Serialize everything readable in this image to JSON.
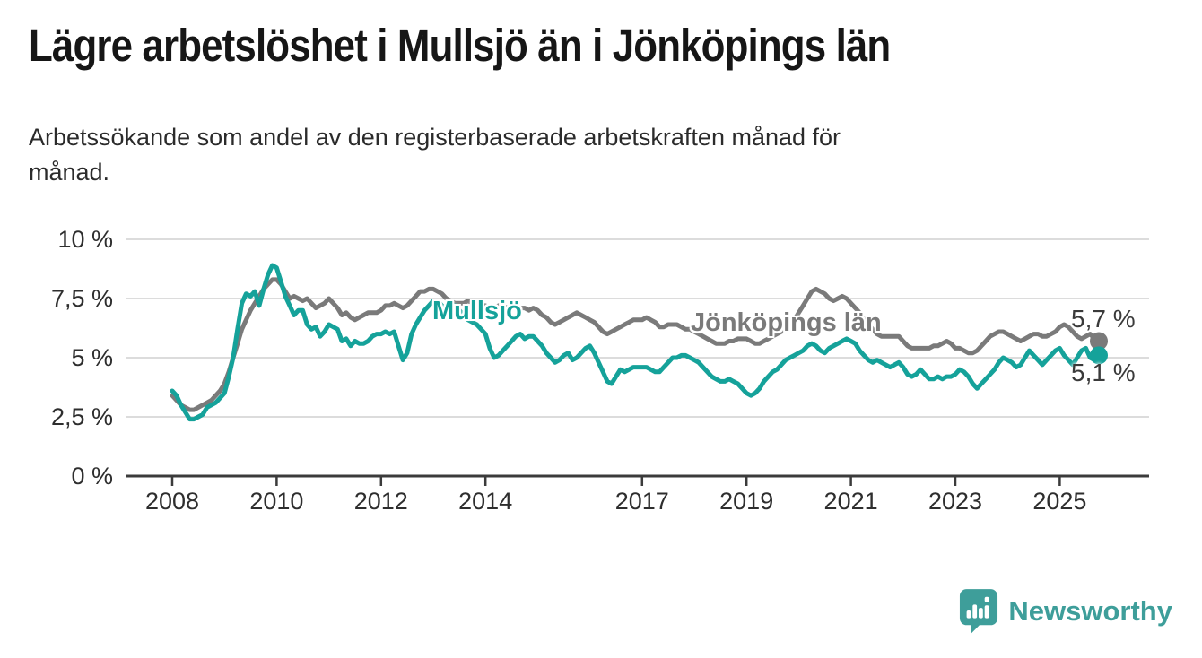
{
  "header": {
    "title": "Lägre arbetslöshet i Mullsjö än i Jönköpings län",
    "subtitle": "Arbetssökande som andel av den registerbaserade arbetskraften månad för\nmånad."
  },
  "chart_data": {
    "type": "line",
    "unit": "%",
    "frequency": "monthly",
    "x_start_year": 2008,
    "ylim": [
      0,
      10
    ],
    "grid": "horizontal",
    "y_ticks": [
      {
        "label": "0 %",
        "value": 0
      },
      {
        "label": "2,5 %",
        "value": 2.5
      },
      {
        "label": "5 %",
        "value": 5
      },
      {
        "label": "7,5 %",
        "value": 7.5
      },
      {
        "label": "10 %",
        "value": 10
      }
    ],
    "x_ticks": [
      {
        "label": "2008",
        "year": 2008
      },
      {
        "label": "2010",
        "year": 2010
      },
      {
        "label": "2012",
        "year": 2012
      },
      {
        "label": "2014",
        "year": 2014
      },
      {
        "label": "2017",
        "year": 2017
      },
      {
        "label": "2019",
        "year": 2019
      },
      {
        "label": "2021",
        "year": 2021
      },
      {
        "label": "2023",
        "year": 2023
      },
      {
        "label": "2025",
        "year": 2025
      }
    ],
    "series": [
      {
        "name": "Mullsjö",
        "color": "#15A29A",
        "end_label": "5,1 %",
        "end_value": 5.1,
        "values": [
          3.6,
          3.4,
          3.0,
          2.7,
          2.4,
          2.4,
          2.5,
          2.6,
          2.9,
          3.0,
          3.1,
          3.3,
          3.5,
          4.2,
          5.0,
          6.2,
          7.3,
          7.7,
          7.6,
          7.8,
          7.2,
          7.9,
          8.5,
          8.9,
          8.8,
          8.2,
          7.6,
          7.2,
          6.8,
          7.0,
          7.0,
          6.4,
          6.2,
          6.3,
          5.9,
          6.1,
          6.4,
          6.3,
          6.2,
          5.7,
          5.8,
          5.5,
          5.7,
          5.6,
          5.6,
          5.7,
          5.9,
          6.0,
          6.0,
          6.1,
          6.0,
          6.1,
          5.5,
          4.9,
          5.2,
          6.0,
          6.4,
          6.7,
          7.0,
          7.2,
          7.4,
          7.4,
          7.2,
          7.1,
          7.0,
          7.2,
          7.0,
          6.8,
          6.6,
          6.5,
          6.4,
          6.2,
          6.0,
          5.4,
          5.0,
          5.1,
          5.3,
          5.5,
          5.7,
          5.9,
          6.0,
          5.8,
          5.9,
          5.9,
          5.7,
          5.5,
          5.2,
          5.0,
          4.8,
          4.9,
          5.1,
          5.2,
          4.9,
          5.0,
          5.2,
          5.4,
          5.5,
          5.2,
          4.8,
          4.4,
          4.0,
          3.9,
          4.2,
          4.5,
          4.4,
          4.5,
          4.6,
          4.6,
          4.6,
          4.6,
          4.5,
          4.4,
          4.4,
          4.6,
          4.8,
          5.0,
          5.0,
          5.1,
          5.1,
          5.0,
          4.9,
          4.8,
          4.6,
          4.4,
          4.2,
          4.1,
          4.0,
          4.0,
          4.1,
          4.0,
          3.9,
          3.7,
          3.5,
          3.4,
          3.5,
          3.7,
          4.0,
          4.2,
          4.4,
          4.5,
          4.7,
          4.9,
          5.0,
          5.1,
          5.2,
          5.3,
          5.5,
          5.6,
          5.5,
          5.3,
          5.2,
          5.4,
          5.5,
          5.6,
          5.7,
          5.8,
          5.7,
          5.6,
          5.3,
          5.1,
          4.9,
          4.8,
          4.9,
          4.8,
          4.7,
          4.6,
          4.7,
          4.8,
          4.6,
          4.3,
          4.2,
          4.3,
          4.5,
          4.3,
          4.1,
          4.1,
          4.2,
          4.1,
          4.2,
          4.2,
          4.3,
          4.5,
          4.4,
          4.2,
          3.9,
          3.7,
          3.9,
          4.1,
          4.3,
          4.5,
          4.8,
          5.0,
          4.9,
          4.8,
          4.6,
          4.7,
          5.0,
          5.3,
          5.1,
          4.9,
          4.7,
          4.9,
          5.1,
          5.3,
          5.4,
          5.1,
          4.9,
          4.7,
          5.0,
          5.3,
          5.4,
          5.0,
          4.9,
          5.1
        ]
      },
      {
        "name": "Jönköpings län",
        "color": "#7A7A7A",
        "end_label": "5,7 %",
        "end_value": 5.7,
        "values": [
          3.4,
          3.2,
          3.0,
          2.9,
          2.8,
          2.8,
          2.9,
          3.0,
          3.1,
          3.2,
          3.4,
          3.6,
          3.9,
          4.4,
          5.0,
          5.6,
          6.2,
          6.6,
          7.0,
          7.3,
          7.6,
          7.9,
          8.1,
          8.3,
          8.3,
          8.1,
          7.8,
          7.5,
          7.6,
          7.5,
          7.4,
          7.5,
          7.3,
          7.1,
          7.2,
          7.3,
          7.5,
          7.3,
          7.1,
          6.8,
          6.9,
          6.7,
          6.6,
          6.7,
          6.8,
          6.9,
          6.9,
          6.9,
          7.0,
          7.2,
          7.2,
          7.3,
          7.2,
          7.1,
          7.2,
          7.4,
          7.6,
          7.8,
          7.8,
          7.9,
          7.9,
          7.8,
          7.7,
          7.5,
          7.4,
          7.3,
          7.3,
          7.3,
          7.4,
          7.3,
          7.2,
          7.2,
          7.2,
          7.1,
          7.1,
          7.2,
          7.2,
          7.1,
          7.1,
          7.2,
          7.1,
          7.1,
          7.0,
          7.1,
          7.0,
          6.8,
          6.7,
          6.5,
          6.4,
          6.5,
          6.6,
          6.7,
          6.8,
          6.9,
          6.8,
          6.7,
          6.6,
          6.5,
          6.3,
          6.1,
          6.0,
          6.1,
          6.2,
          6.3,
          6.4,
          6.5,
          6.6,
          6.6,
          6.6,
          6.7,
          6.6,
          6.5,
          6.3,
          6.3,
          6.4,
          6.4,
          6.4,
          6.3,
          6.2,
          6.2,
          6.1,
          6.0,
          5.9,
          5.8,
          5.7,
          5.6,
          5.6,
          5.6,
          5.7,
          5.7,
          5.8,
          5.8,
          5.8,
          5.7,
          5.6,
          5.6,
          5.7,
          5.8,
          5.9,
          6.0,
          6.1,
          6.2,
          6.4,
          6.6,
          6.9,
          7.2,
          7.5,
          7.8,
          7.9,
          7.8,
          7.7,
          7.5,
          7.4,
          7.5,
          7.6,
          7.5,
          7.3,
          7.1,
          6.9,
          6.6,
          6.4,
          6.2,
          6.0,
          5.9,
          5.9,
          5.9,
          5.9,
          5.9,
          5.7,
          5.5,
          5.4,
          5.4,
          5.4,
          5.4,
          5.4,
          5.5,
          5.5,
          5.6,
          5.7,
          5.6,
          5.4,
          5.4,
          5.3,
          5.2,
          5.2,
          5.3,
          5.5,
          5.7,
          5.9,
          6.0,
          6.1,
          6.1,
          6.0,
          5.9,
          5.8,
          5.7,
          5.8,
          5.9,
          6.0,
          6.0,
          5.9,
          5.9,
          6.0,
          6.1,
          6.3,
          6.4,
          6.3,
          6.1,
          5.9,
          5.8,
          5.9,
          6.0,
          5.8,
          5.7
        ]
      }
    ]
  },
  "footer": {
    "brand": "Newsworthy",
    "brand_color": "#3E9E9A"
  }
}
